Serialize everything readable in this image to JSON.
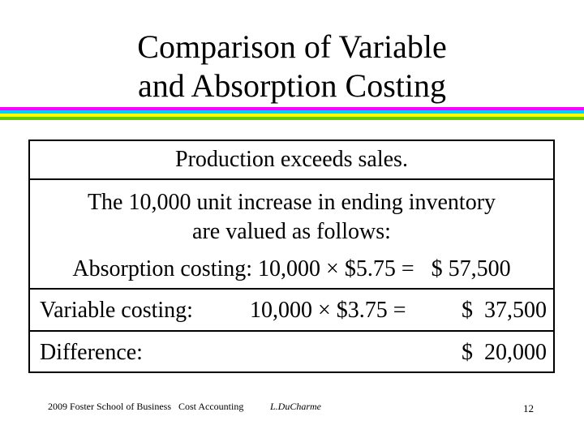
{
  "title": {
    "line1": "Comparison of Variable",
    "line2": "and Absorption Costing"
  },
  "table": {
    "header": "Production exceeds sales.",
    "intro_line1": "The 10,000 unit increase in ending inventory",
    "intro_line2": "are valued as follows:",
    "absorption_line": "Absorption costing: 10,000 × $5.75 =   $ 57,500",
    "variable": {
      "label": "Variable costing:",
      "calc": "10,000 × $3.75 =",
      "value": "$  37,500"
    },
    "difference": {
      "label": "Difference:",
      "value": "$  20,000"
    }
  },
  "footer": {
    "left": "2009 Foster School of Business   Cost Accounting",
    "author": "L.DuCharme",
    "page": "12"
  },
  "colors": {
    "rule_magenta": "#ff00ff",
    "rule_cyan": "#00d0ff",
    "rule_yellow": "#ffff00",
    "rule_green": "#66cc00"
  }
}
